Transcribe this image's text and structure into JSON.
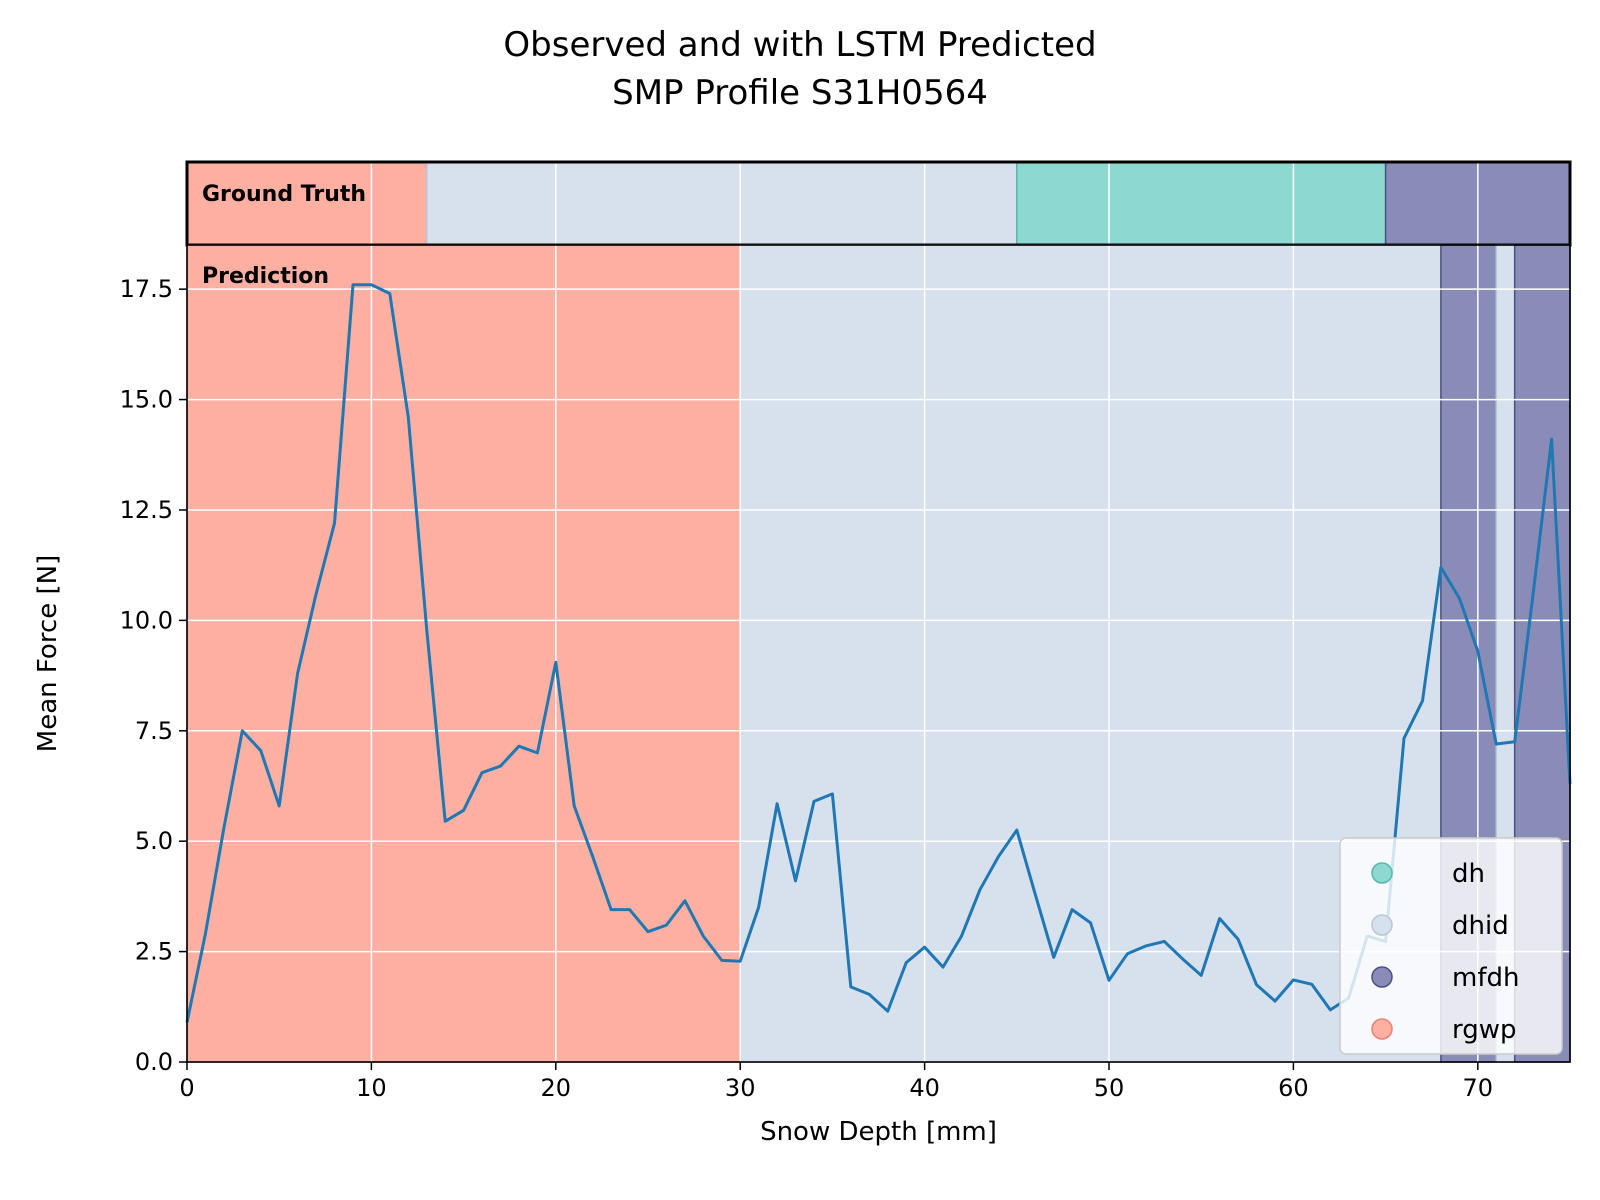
{
  "chart_data": {
    "type": "line",
    "title": "Observed and with LSTM Predicted",
    "subtitle": "SMP Profile S31H0564",
    "xlabel": "Snow Depth [mm]",
    "ylabel": "Mean Force [N]",
    "xlim": [
      0,
      75
    ],
    "ylim": [
      0,
      18.5
    ],
    "xticks": [
      0,
      10,
      20,
      30,
      40,
      50,
      60,
      70
    ],
    "xtick_labels": [
      "0",
      "10",
      "20",
      "30",
      "40",
      "50",
      "60",
      "70"
    ],
    "yticks": [
      0,
      2.5,
      5,
      7.5,
      10,
      12.5,
      15,
      17.5
    ],
    "ytick_labels": [
      "0.0",
      "2.5",
      "5.0",
      "7.5",
      "10.0",
      "12.5",
      "15.0",
      "17.5"
    ],
    "grid": true,
    "ground_truth_label": "Ground Truth",
    "prediction_label": "Prediction",
    "series": [
      {
        "color": "#1f77b4",
        "x": [
          0,
          1,
          2,
          3,
          4,
          5,
          6,
          7,
          8,
          9,
          10,
          11,
          12,
          13,
          14,
          15,
          16,
          17,
          18,
          19,
          20,
          21,
          22,
          23,
          24,
          25,
          26,
          27,
          28,
          29,
          30,
          31,
          32,
          33,
          34,
          35,
          36,
          37,
          38,
          39,
          40,
          41,
          42,
          43,
          44,
          45,
          46,
          47,
          48,
          49,
          50,
          51,
          52,
          53,
          54,
          55,
          56,
          57,
          58,
          59,
          60,
          61,
          62,
          63,
          64,
          65,
          66,
          67,
          68,
          69,
          70,
          71,
          72,
          73,
          74,
          75
        ],
        "y": [
          0.9,
          2.9,
          5.3,
          7.5,
          7.05,
          5.8,
          8.8,
          10.6,
          12.2,
          17.6,
          17.6,
          17.4,
          14.6,
          9.8,
          5.45,
          5.7,
          6.55,
          6.7,
          7.15,
          7.0,
          9.05,
          5.8,
          4.65,
          3.45,
          3.45,
          2.95,
          3.1,
          3.65,
          2.85,
          2.3,
          2.28,
          3.5,
          5.85,
          4.1,
          5.9,
          6.07,
          1.7,
          1.53,
          1.15,
          2.25,
          2.6,
          2.15,
          2.85,
          3.9,
          4.65,
          5.25,
          3.8,
          2.37,
          3.45,
          3.15,
          1.85,
          2.45,
          2.63,
          2.73,
          2.33,
          1.96,
          3.25,
          2.78,
          1.75,
          1.38,
          1.86,
          1.76,
          1.18,
          1.45,
          2.85,
          2.73,
          7.33,
          8.18,
          11.2,
          10.5,
          9.3,
          7.2,
          7.25,
          10.6,
          14.1,
          6.3
        ]
      }
    ],
    "ground_truth_segments": [
      {
        "start": 0,
        "end": 13,
        "label": "rgwp"
      },
      {
        "start": 13,
        "end": 45,
        "label": "dhid"
      },
      {
        "start": 45,
        "end": 65,
        "label": "dh"
      },
      {
        "start": 65,
        "end": 75,
        "label": "mfdh"
      }
    ],
    "prediction_segments": [
      {
        "start": 0,
        "end": 30,
        "label": "rgwp"
      },
      {
        "start": 30,
        "end": 68,
        "label": "dhid"
      },
      {
        "start": 68,
        "end": 71,
        "label": "mfdh"
      },
      {
        "start": 71,
        "end": 72,
        "label": "dhid"
      },
      {
        "start": 72,
        "end": 75,
        "label": "mfdh"
      }
    ],
    "legend": {
      "placement": "lower right",
      "entries": [
        {
          "label": "dh",
          "color": "#8dd9d1"
        },
        {
          "label": "dhid",
          "color": "#d7e1ed"
        },
        {
          "label": "mfdh",
          "color": "#8a8cb8"
        },
        {
          "label": "rgwp",
          "color": "#fdb0a2"
        }
      ]
    },
    "class_colors": {
      "dh": "#8dd9d1",
      "dhid": "#d7e1ed",
      "mfdh": "#8a8cb8",
      "rgwp": "#fdb0a2"
    },
    "class_edge_colors": {
      "dh": "#55b8ad",
      "dhid": "#b8c6d6",
      "mfdh": "#4c4f84",
      "rgwp": "#f08070"
    }
  }
}
